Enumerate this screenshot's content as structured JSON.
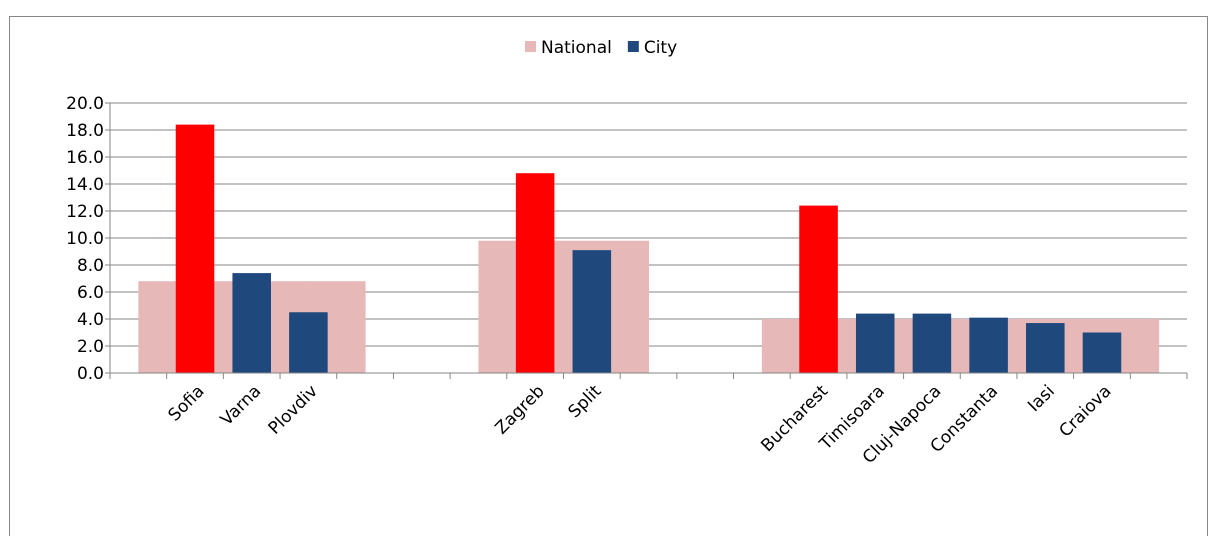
{
  "chart_data": {
    "type": "bar",
    "categories": [
      null,
      "Sofia",
      "Varna",
      "Plovdiv",
      null,
      null,
      null,
      "Zagreb",
      "Split",
      null,
      null,
      null,
      "Bucharest",
      "Timisoara",
      "Cluj-Napoca",
      "Constanta",
      "Iasi",
      "Craiova",
      null
    ],
    "series": [
      {
        "name": "National",
        "color": "#e6b9b8",
        "values": [
          null,
          6.8,
          6.8,
          6.8,
          6.8,
          null,
          null,
          9.8,
          9.8,
          9.8,
          null,
          null,
          4.0,
          4.0,
          4.0,
          4.0,
          4.0,
          4.0,
          4.0
        ]
      },
      {
        "name": "City",
        "color": "#1f497d",
        "values": [
          null,
          18.4,
          7.4,
          4.5,
          null,
          null,
          null,
          14.8,
          9.1,
          null,
          null,
          null,
          12.4,
          4.4,
          4.4,
          4.1,
          3.7,
          3.0,
          null
        ],
        "colors": [
          null,
          "#ff0000",
          "#1f497d",
          "#1f497d",
          null,
          null,
          null,
          "#ff0000",
          "#1f497d",
          null,
          null,
          null,
          "#ff0000",
          "#1f497d",
          "#1f497d",
          "#1f497d",
          "#1f497d",
          "#1f497d",
          null
        ]
      }
    ],
    "ylim": [
      0,
      20
    ],
    "yticks": [
      {
        "value": 0,
        "label": "0.0"
      },
      {
        "value": 2,
        "label": "2.0"
      },
      {
        "value": 4,
        "label": "4.0"
      },
      {
        "value": 6,
        "label": "6.0"
      },
      {
        "value": 8,
        "label": "8.0"
      },
      {
        "value": 10,
        "label": "10.0"
      },
      {
        "value": 12,
        "label": "12.0"
      },
      {
        "value": 14,
        "label": "14.0"
      },
      {
        "value": 16,
        "label": "16.0"
      },
      {
        "value": 18,
        "label": "18.0"
      },
      {
        "value": 20,
        "label": "20.0"
      }
    ],
    "grid": true,
    "legend": "top"
  }
}
